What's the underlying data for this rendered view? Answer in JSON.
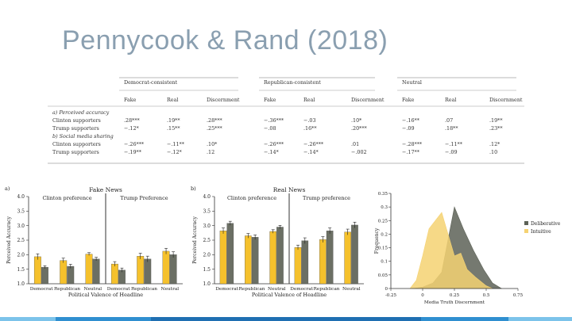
{
  "slide": {
    "title": "Pennycook & Rand (2018)",
    "title_color": "#8a9fb0"
  },
  "table": {
    "group_headers": [
      "Democrat-consistent",
      "Republican-consistent",
      "Neutral"
    ],
    "col_headers": [
      "Fake",
      "Real",
      "Discernment",
      "Fake",
      "Real",
      "Discernment",
      "Fake",
      "Real",
      "Discernment"
    ],
    "sections": [
      {
        "label": "a) Perceived accuracy",
        "rows": [
          {
            "label": "Clinton supporters",
            "cells": [
              ".28***",
              ".19**",
              ".28***",
              "−.36***",
              "−.03",
              ".10*",
              "−.16**",
              ".07",
              ".19**"
            ]
          },
          {
            "label": "Trump supporters",
            "cells": [
              "−.12*",
              ".15**",
              ".25***",
              "−.08",
              ".16**",
              ".20***",
              "−.09",
              ".18**",
              ".23**"
            ]
          }
        ]
      },
      {
        "label": "b) Social media sharing",
        "rows": [
          {
            "label": "Clinton supporters",
            "cells": [
              "−.26***",
              "−.11**",
              ".10*",
              "−.26***",
              "−.26***",
              ".01",
              "−.28***",
              "−.11**",
              ".12*"
            ]
          },
          {
            "label": "Trump supporters",
            "cells": [
              "−.19**",
              "−.12*",
              ".12",
              "−.14*",
              "−.14*",
              "−.002",
              "−.17**",
              "−.09",
              ".10"
            ]
          }
        ]
      }
    ]
  },
  "chart_data": [
    {
      "type": "bar",
      "panel_label": "a)",
      "title": "Fake News",
      "subtitles": [
        "Clinton preference",
        "Trump Preference"
      ],
      "ylabel": "Perceived Accuracy",
      "xlabel": "Political Valence of Headline",
      "ylim": [
        1.0,
        4.0
      ],
      "yticks": [
        "1.0",
        "1.5",
        "2.0",
        "2.5",
        "3.0",
        "3.5",
        "4.0"
      ],
      "categories": [
        "Democrat",
        "Republican",
        "Neutral",
        "Democrat",
        "Republican",
        "Neutral"
      ],
      "series": [
        {
          "name": "Yellow",
          "color": "#f5c12c",
          "values": [
            1.93,
            1.8,
            2.02,
            1.68,
            1.95,
            2.12
          ],
          "errors": [
            0.1,
            0.08,
            0.05,
            0.08,
            0.1,
            0.1
          ]
        },
        {
          "name": "Gray",
          "color": "#6b6f64",
          "values": [
            1.57,
            1.6,
            1.85,
            1.47,
            1.85,
            2.0
          ],
          "errors": [
            0.05,
            0.07,
            0.06,
            0.07,
            0.1,
            0.1
          ]
        }
      ]
    },
    {
      "type": "bar",
      "panel_label": "b)",
      "title": "Real News",
      "subtitles": [
        "Clinton preference",
        "Trump preference"
      ],
      "ylabel": "Perceived Accuracy",
      "xlabel": "Political Valence of Headline",
      "ylim": [
        1.0,
        4.0
      ],
      "yticks": [
        "1.0",
        "1.5",
        "2.0",
        "2.5",
        "3.0",
        "3.5",
        "4.0"
      ],
      "categories": [
        "Democrat",
        "Republican",
        "Neutral",
        "Democrat",
        "Republican",
        "Neutral"
      ],
      "series": [
        {
          "name": "Yellow",
          "color": "#f5c12c",
          "values": [
            2.82,
            2.65,
            2.8,
            2.25,
            2.52,
            2.78
          ],
          "errors": [
            0.1,
            0.08,
            0.06,
            0.08,
            0.1,
            0.1
          ]
        },
        {
          "name": "Gray",
          "color": "#6b6f64",
          "values": [
            3.08,
            2.6,
            2.95,
            2.48,
            2.82,
            3.02
          ],
          "errors": [
            0.07,
            0.08,
            0.06,
            0.1,
            0.1,
            0.1
          ]
        }
      ]
    },
    {
      "type": "area",
      "ylabel": "Frequency",
      "xlabel": "Media Truth Discernment",
      "xlim": [
        -0.25,
        0.75
      ],
      "ylim": [
        0,
        0.35
      ],
      "xticks": [
        "-0.25",
        "0",
        "0.25",
        "0.5",
        "0.75"
      ],
      "yticks": [
        "0",
        "0.05",
        "0.1",
        "0.15",
        "0.2",
        "0.25",
        "0.3",
        "0.35"
      ],
      "legend_position": "right",
      "series": [
        {
          "name": "Deliberative",
          "color": "#5d6257",
          "x": [
            -0.08,
            0.0,
            0.08,
            0.15,
            0.2,
            0.25,
            0.32,
            0.4,
            0.48,
            0.55,
            0.62
          ],
          "y": [
            0,
            0.005,
            0.02,
            0.06,
            0.18,
            0.3,
            0.22,
            0.14,
            0.07,
            0.02,
            0
          ]
        },
        {
          "name": "Intuitive",
          "color": "#f5d272",
          "x": [
            -0.1,
            -0.05,
            0.0,
            0.05,
            0.1,
            0.15,
            0.2,
            0.25,
            0.3,
            0.35,
            0.42,
            0.5,
            0.55
          ],
          "y": [
            0,
            0.03,
            0.12,
            0.22,
            0.25,
            0.28,
            0.2,
            0.12,
            0.13,
            0.07,
            0.04,
            0.01,
            0
          ]
        }
      ]
    }
  ],
  "stripe_colors": [
    "#7cc3ea",
    "#2f8fd0",
    "#1f6fb2",
    "#2f8fd0",
    "#7cc3ea"
  ]
}
